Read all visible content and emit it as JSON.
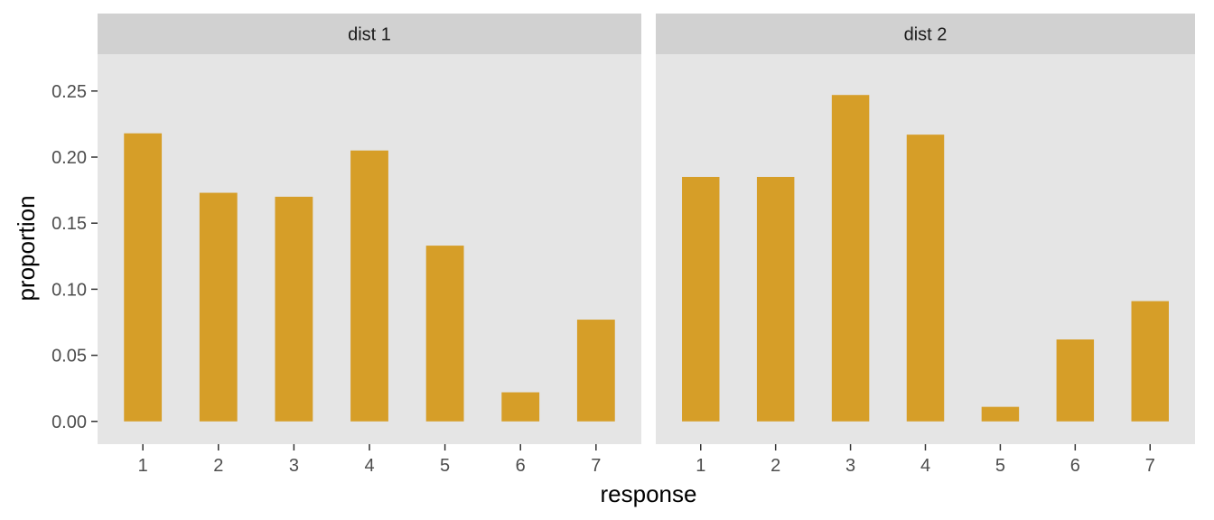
{
  "chart_data": {
    "type": "bar",
    "xlabel": "response",
    "ylabel": "proportion",
    "ylim": [
      -0.01725,
      0.2779
    ],
    "yticks": [
      0.0,
      0.05,
      0.1,
      0.15,
      0.2,
      0.25
    ],
    "ytick_labels": [
      "0.00",
      "0.05",
      "0.10",
      "0.15",
      "0.20",
      "0.25"
    ],
    "categories": [
      "1",
      "2",
      "3",
      "4",
      "5",
      "6",
      "7"
    ],
    "grid": false,
    "panel_background": "#e5e5e5",
    "strip_background": "#d1d1d1",
    "bar_color": "#d69e28",
    "facets": [
      {
        "name": "dist 1",
        "values": [
          0.218,
          0.173,
          0.17,
          0.205,
          0.133,
          0.022,
          0.077
        ]
      },
      {
        "name": "dist 2",
        "values": [
          0.185,
          0.185,
          0.247,
          0.217,
          0.011,
          0.062,
          0.091
        ]
      }
    ]
  }
}
